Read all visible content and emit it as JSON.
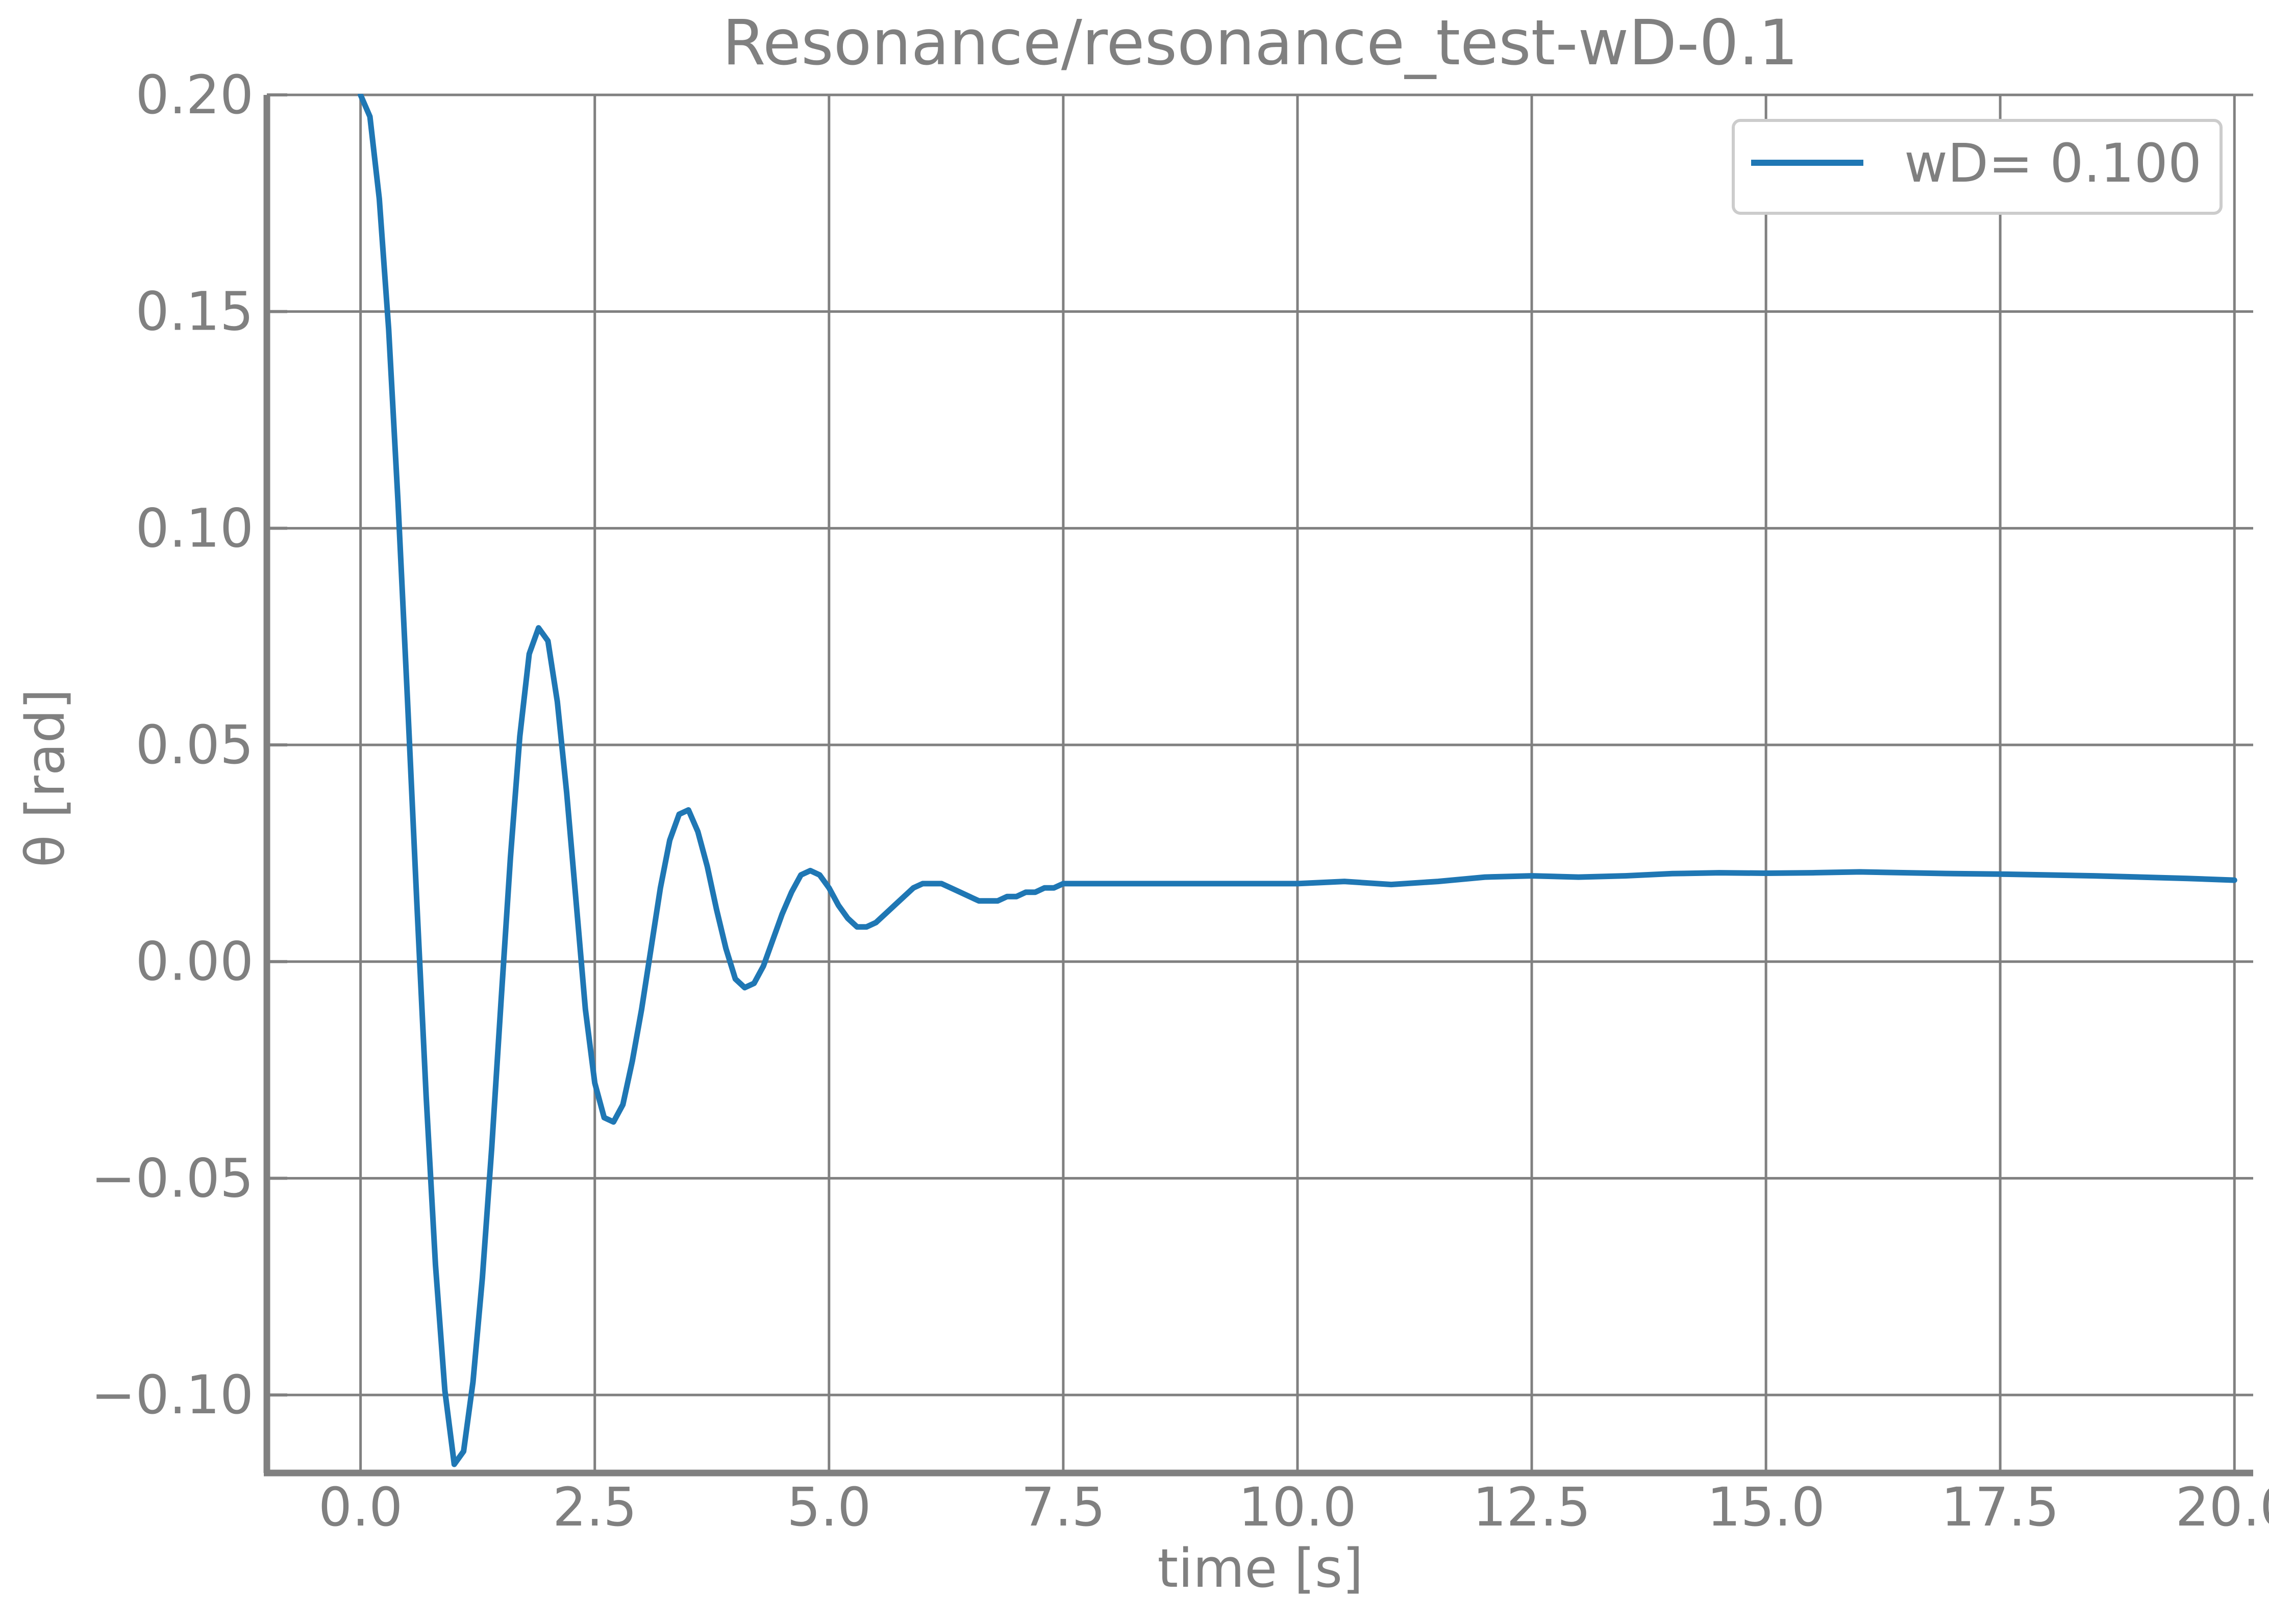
{
  "chart_data": {
    "type": "line",
    "title": "Resonance/resonance_test-wD-0.1",
    "xlabel": "time [s]",
    "ylabel": "θ [rad]",
    "xlim": [
      -1.0,
      20.2
    ],
    "ylim": [
      -0.118,
      0.2
    ],
    "xticks": [
      0.0,
      2.5,
      5.0,
      7.5,
      10.0,
      12.5,
      15.0,
      17.5,
      20.0
    ],
    "xtick_labels": [
      "0.0",
      "2.5",
      "5.0",
      "7.5",
      "10.0",
      "12.5",
      "15.0",
      "17.5",
      "20.0"
    ],
    "yticks": [
      -0.1,
      -0.05,
      0.0,
      0.05,
      0.1,
      0.15,
      0.2
    ],
    "ytick_labels": [
      "−0.10",
      "−0.05",
      "0.00",
      "0.05",
      "0.10",
      "0.15",
      "0.20"
    ],
    "grid": true,
    "legend_position": "top-right",
    "series": [
      {
        "name": "wD= 0.100",
        "color": "#1f77b4",
        "x": [
          0.0,
          0.1,
          0.2,
          0.3,
          0.4,
          0.5,
          0.6,
          0.7,
          0.8,
          0.9,
          1.0,
          1.1,
          1.2,
          1.3,
          1.4,
          1.5,
          1.6,
          1.7,
          1.8,
          1.9,
          2.0,
          2.1,
          2.2,
          2.3,
          2.4,
          2.5,
          2.6,
          2.7,
          2.8,
          2.9,
          3.0,
          3.1,
          3.2,
          3.3,
          3.4,
          3.5,
          3.6,
          3.7,
          3.8,
          3.9,
          4.0,
          4.1,
          4.2,
          4.3,
          4.4,
          4.5,
          4.6,
          4.7,
          4.8,
          4.9,
          5.0,
          5.1,
          5.2,
          5.3,
          5.4,
          5.5,
          5.6,
          5.7,
          5.8,
          5.9,
          6.0,
          6.1,
          6.2,
          6.3,
          6.4,
          6.5,
          6.6,
          6.7,
          6.8,
          6.9,
          7.0,
          7.1,
          7.2,
          7.3,
          7.4,
          7.5,
          7.6,
          7.7,
          7.8,
          7.9,
          8.0,
          8.1,
          8.2,
          8.3,
          8.4,
          8.5,
          8.6,
          8.7,
          8.8,
          8.9,
          9.0,
          9.1,
          9.2,
          9.3,
          9.4,
          9.5,
          9.6,
          9.7,
          9.8,
          9.9,
          10.0,
          10.5,
          11.0,
          11.5,
          12.0,
          12.5,
          13.0,
          13.5,
          14.0,
          14.5,
          15.0,
          15.5,
          16.0,
          16.5,
          17.0,
          17.5,
          18.0,
          18.5,
          19.0,
          19.5,
          20.0
        ],
        "y": [
          0.2,
          0.195,
          0.176,
          0.146,
          0.106,
          0.061,
          0.014,
          -0.031,
          -0.07,
          -0.099,
          -0.116,
          -0.113,
          -0.097,
          -0.073,
          -0.043,
          -0.009,
          0.024,
          0.052,
          0.071,
          0.077,
          0.074,
          0.06,
          0.039,
          0.014,
          -0.011,
          -0.028,
          -0.036,
          -0.037,
          -0.033,
          -0.023,
          -0.011,
          0.003,
          0.017,
          0.028,
          0.034,
          0.035,
          0.03,
          0.022,
          0.012,
          0.003,
          -0.004,
          -0.006,
          -0.005,
          -0.001,
          0.005,
          0.011,
          0.016,
          0.02,
          0.021,
          0.02,
          0.017,
          0.013,
          0.01,
          0.008,
          0.008,
          0.009,
          0.011,
          0.013,
          0.015,
          0.017,
          0.018,
          0.018,
          0.018,
          0.017,
          0.016,
          0.015,
          0.014,
          0.014,
          0.014,
          0.015,
          0.015,
          0.016,
          0.016,
          0.017,
          0.017,
          0.018,
          0.018,
          0.018,
          0.018,
          0.018,
          0.018,
          0.018,
          0.018,
          0.018,
          0.018,
          0.018,
          0.018,
          0.018,
          0.018,
          0.018,
          0.018,
          0.018,
          0.018,
          0.018,
          0.018,
          0.018,
          0.018,
          0.018,
          0.018,
          0.018,
          0.018,
          0.0185,
          0.0178,
          0.0185,
          0.0195,
          0.0198,
          0.0195,
          0.0198,
          0.0203,
          0.0205,
          0.0204,
          0.0205,
          0.0207,
          0.0205,
          0.0203,
          0.0202,
          0.02,
          0.0198,
          0.0195,
          0.0192,
          0.0188
        ]
      }
    ]
  }
}
